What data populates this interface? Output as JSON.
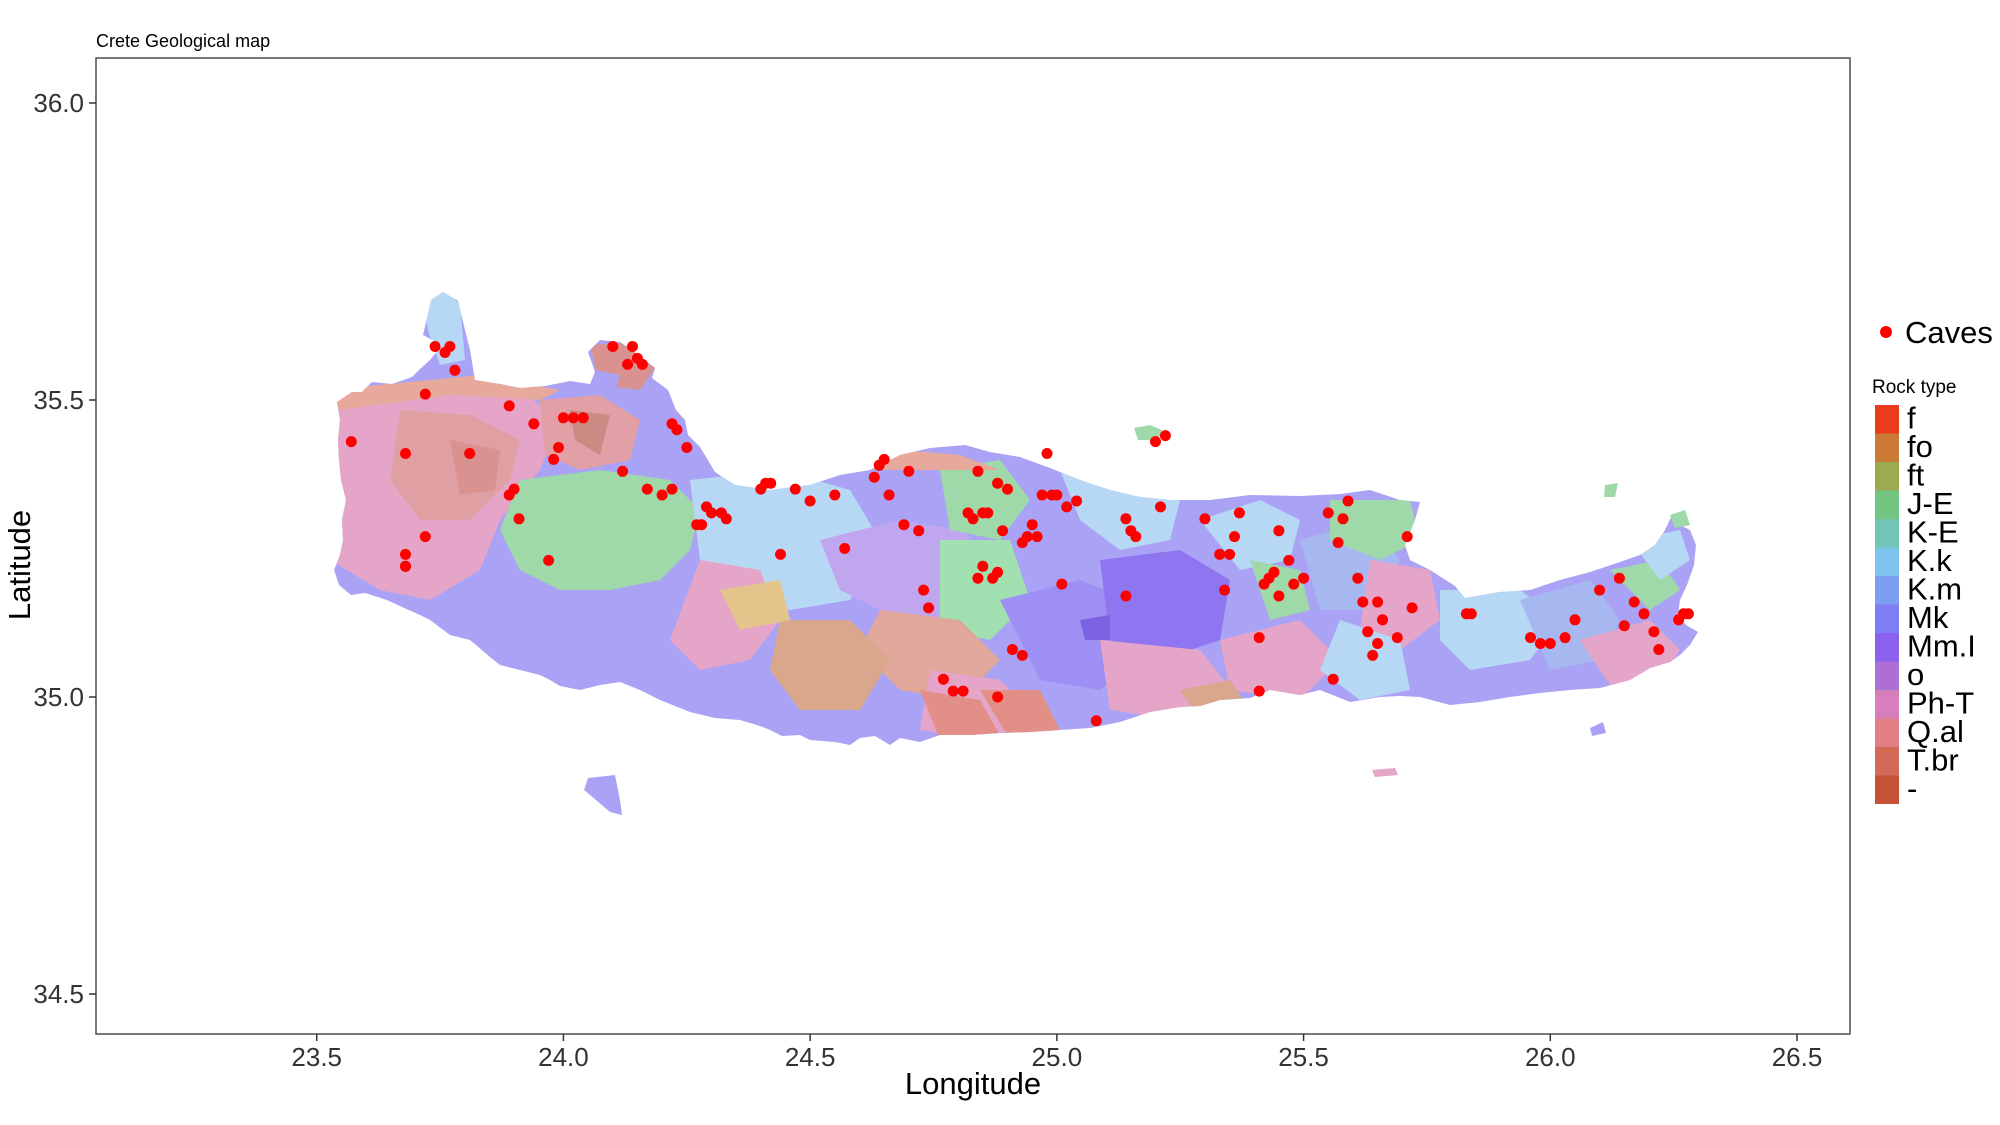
{
  "title": "Crete Geological map",
  "x_axis": {
    "label": "Longitude",
    "ticks": [
      "23.5",
      "24.0",
      "24.5",
      "25.0",
      "25.5",
      "26.0",
      "26.5"
    ]
  },
  "y_axis": {
    "label": "Latitude",
    "ticks": [
      "36.0",
      "35.5",
      "35.0",
      "34.5"
    ]
  },
  "legend": {
    "points_label": "Caves",
    "points_color": "#ff0000",
    "title": "Rock type",
    "items": [
      {
        "label": "f",
        "color": "#ec3a1d"
      },
      {
        "label": "fo",
        "color": "#ca7a35"
      },
      {
        "label": "ft",
        "color": "#9eaa52"
      },
      {
        "label": "J-E",
        "color": "#72c47f"
      },
      {
        "label": "K-E",
        "color": "#74c4b3"
      },
      {
        "label": "K.k",
        "color": "#7dc3ee"
      },
      {
        "label": "K.m",
        "color": "#7b9df2"
      },
      {
        "label": "Mk",
        "color": "#7f7ef4"
      },
      {
        "label": "Mm.I",
        "color": "#8a60ef"
      },
      {
        "label": "o",
        "color": "#ac6fd6"
      },
      {
        "label": "Ph-T",
        "color": "#d67fbb"
      },
      {
        "label": "Q.al",
        "color": "#e17f85"
      },
      {
        "label": "T.br",
        "color": "#d26a57"
      },
      {
        "label": "-",
        "color": "#c65235"
      }
    ]
  },
  "caves": [
    [
      23.57,
      35.43
    ],
    [
      23.68,
      35.41
    ],
    [
      23.72,
      35.27
    ],
    [
      23.68,
      35.24
    ],
    [
      23.68,
      35.22
    ],
    [
      23.74,
      35.59
    ],
    [
      23.76,
      35.58
    ],
    [
      23.77,
      35.59
    ],
    [
      23.78,
      35.55
    ],
    [
      23.72,
      35.51
    ],
    [
      23.81,
      35.41
    ],
    [
      23.89,
      35.49
    ],
    [
      23.89,
      35.34
    ],
    [
      23.9,
      35.35
    ],
    [
      23.91,
      35.3
    ],
    [
      23.94,
      35.46
    ],
    [
      23.97,
      35.23
    ],
    [
      23.98,
      35.4
    ],
    [
      23.99,
      35.42
    ],
    [
      24.0,
      35.47
    ],
    [
      24.02,
      35.47
    ],
    [
      24.04,
      35.47
    ],
    [
      24.1,
      35.59
    ],
    [
      24.13,
      35.56
    ],
    [
      24.14,
      35.59
    ],
    [
      24.15,
      35.57
    ],
    [
      24.16,
      35.56
    ],
    [
      24.12,
      35.38
    ],
    [
      24.17,
      35.35
    ],
    [
      24.2,
      35.34
    ],
    [
      24.22,
      35.35
    ],
    [
      24.22,
      35.46
    ],
    [
      24.23,
      35.45
    ],
    [
      24.25,
      35.42
    ],
    [
      24.27,
      35.29
    ],
    [
      24.28,
      35.29
    ],
    [
      24.29,
      35.32
    ],
    [
      24.3,
      35.31
    ],
    [
      24.32,
      35.31
    ],
    [
      24.33,
      35.3
    ],
    [
      24.4,
      35.35
    ],
    [
      24.41,
      35.36
    ],
    [
      24.42,
      35.36
    ],
    [
      24.44,
      35.24
    ],
    [
      24.47,
      35.35
    ],
    [
      24.5,
      35.33
    ],
    [
      24.55,
      35.34
    ],
    [
      24.57,
      35.25
    ],
    [
      24.63,
      35.37
    ],
    [
      24.64,
      35.39
    ],
    [
      24.65,
      35.4
    ],
    [
      24.66,
      35.34
    ],
    [
      24.69,
      35.29
    ],
    [
      24.7,
      35.38
    ],
    [
      24.72,
      35.28
    ],
    [
      24.73,
      35.18
    ],
    [
      24.74,
      35.15
    ],
    [
      24.77,
      35.03
    ],
    [
      24.79,
      35.01
    ],
    [
      24.81,
      35.01
    ],
    [
      24.82,
      35.31
    ],
    [
      24.83,
      35.3
    ],
    [
      24.84,
      35.38
    ],
    [
      24.85,
      35.31
    ],
    [
      24.86,
      35.31
    ],
    [
      24.84,
      35.2
    ],
    [
      24.85,
      35.22
    ],
    [
      24.87,
      35.2
    ],
    [
      24.88,
      35.21
    ],
    [
      24.88,
      35.36
    ],
    [
      24.89,
      35.28
    ],
    [
      24.9,
      35.35
    ],
    [
      24.91,
      35.08
    ],
    [
      24.93,
      35.07
    ],
    [
      24.93,
      35.26
    ],
    [
      24.94,
      35.27
    ],
    [
      24.95,
      35.29
    ],
    [
      24.96,
      35.27
    ],
    [
      24.97,
      35.34
    ],
    [
      24.98,
      35.41
    ],
    [
      24.99,
      35.34
    ],
    [
      25.0,
      35.34
    ],
    [
      25.01,
      35.19
    ],
    [
      25.02,
      35.32
    ],
    [
      25.04,
      35.33
    ],
    [
      25.08,
      34.96
    ],
    [
      25.14,
      35.3
    ],
    [
      25.15,
      35.28
    ],
    [
      25.14,
      35.17
    ],
    [
      25.16,
      35.27
    ],
    [
      25.2,
      35.43
    ],
    [
      25.21,
      35.32
    ],
    [
      25.22,
      35.44
    ],
    [
      25.3,
      35.3
    ],
    [
      25.33,
      35.24
    ],
    [
      25.34,
      35.18
    ],
    [
      25.35,
      35.24
    ],
    [
      25.36,
      35.27
    ],
    [
      25.37,
      35.31
    ],
    [
      25.41,
      35.1
    ],
    [
      25.42,
      35.19
    ],
    [
      25.43,
      35.2
    ],
    [
      25.44,
      35.21
    ],
    [
      25.45,
      35.17
    ],
    [
      25.45,
      35.28
    ],
    [
      25.47,
      35.23
    ],
    [
      25.48,
      35.19
    ],
    [
      25.5,
      35.2
    ],
    [
      25.55,
      35.31
    ],
    [
      25.57,
      35.26
    ],
    [
      25.58,
      35.3
    ],
    [
      25.59,
      35.33
    ],
    [
      25.61,
      35.2
    ],
    [
      25.62,
      35.16
    ],
    [
      25.63,
      35.11
    ],
    [
      25.64,
      35.07
    ],
    [
      25.65,
      35.09
    ],
    [
      25.65,
      35.16
    ],
    [
      25.66,
      35.13
    ],
    [
      25.69,
      35.1
    ],
    [
      25.71,
      35.27
    ],
    [
      25.72,
      35.15
    ],
    [
      25.83,
      35.14
    ],
    [
      25.84,
      35.14
    ],
    [
      25.96,
      35.1
    ],
    [
      25.98,
      35.09
    ],
    [
      26.0,
      35.09
    ],
    [
      26.03,
      35.1
    ],
    [
      26.05,
      35.13
    ],
    [
      26.1,
      35.18
    ],
    [
      26.14,
      35.2
    ],
    [
      26.15,
      35.12
    ],
    [
      26.17,
      35.16
    ],
    [
      26.19,
      35.14
    ],
    [
      26.21,
      35.11
    ],
    [
      26.22,
      35.08
    ],
    [
      26.26,
      35.13
    ],
    [
      26.27,
      35.14
    ],
    [
      26.28,
      35.14
    ],
    [
      25.41,
      35.01
    ],
    [
      25.56,
      35.03
    ],
    [
      24.88,
      35.0
    ],
    [
      23.68,
      35.22
    ]
  ]
}
